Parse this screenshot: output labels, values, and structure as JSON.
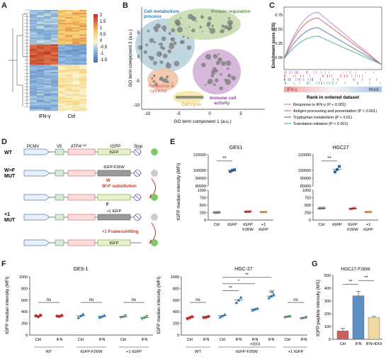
{
  "panels": {
    "A": {
      "label": "A",
      "xlabels": [
        "IFN-γ",
        "Ctrl"
      ],
      "colorbar_ticks": [
        "2",
        "1.5",
        "1",
        "0.5",
        "0",
        "-0.5",
        "-1",
        "-1.5"
      ]
    },
    "B": {
      "label": "B",
      "xlabel": "GO term component 1 (a.u.)",
      "ylabel": "GO term component 2 (a.u.)",
      "xticks": [
        "-10",
        "-5",
        "0",
        "5"
      ],
      "yticks": [
        "5",
        "0",
        "-5",
        "-10"
      ],
      "clusters": [
        {
          "name": "Cell metabolism process",
          "lines": [
            "Cell metabolism",
            "process"
          ],
          "color": "#2a7dbf"
        },
        {
          "name": "Protein regulation",
          "lines": [
            "Protein regulation"
          ],
          "color": "#5e9a3c"
        },
        {
          "name": "Response to cytokine",
          "lines": [
            "Response to",
            "cytokine"
          ],
          "color": "#d9534f"
        },
        {
          "name": "Cell cycle",
          "lines": [
            "Cell cycle"
          ],
          "color": "#e0a030"
        },
        {
          "name": "Immune cell activity",
          "lines": [
            "Immune cell",
            "activity"
          ],
          "color": "#8e4a9a"
        }
      ]
    },
    "C": {
      "label": "C",
      "ylabel": "Enrichment score (ES)",
      "yticks": [
        "0.75",
        "0.50",
        "0.25",
        "0.00"
      ],
      "left_tag": "IFN-γ",
      "right_tag": "Mock",
      "xlabel": "Rank in ordered dataset",
      "legend": [
        {
          "text": "Response to IFN-γ (P < 0.001)",
          "color": "#c08ad0"
        },
        {
          "text": "Antigen processing and presentation (P < 0.001)",
          "color": "#e06a6a"
        },
        {
          "text": "Tryptophan metabolism (P < 0.01)",
          "color": "#6a78c0"
        },
        {
          "text": "Translation initiation (P < 0.001)",
          "color": "#5ab89a"
        }
      ]
    },
    "D": {
      "label": "D",
      "rows": [
        {
          "name": "WT",
          "name_lines": [
            "WT"
          ],
          "tgfp": "tGFP"
        },
        {
          "name": "W>F MUT",
          "name_lines": [
            "W>F",
            "MUT"
          ],
          "tgfp": "tGFP-F26W",
          "site": "W",
          "arrow_label": "W>F substitution",
          "site2": "F"
        },
        {
          "name": "+1 MUT",
          "name_lines": [
            "+1",
            "MUT"
          ],
          "tgfp": "+1 tGFP",
          "arrow_label": "+1 Framesshifting",
          "tgfp2": "tGFP"
        }
      ],
      "header": {
        "promoter": "PCMV",
        "v5": "V5",
        "atf4": "ATF4",
        "atf4_sup": "1-63",
        "tgfp": "tGFP",
        "stop": "Stop"
      }
    },
    "E": {
      "label": "E",
      "ylabel": "tGFP median intensity (MFI)",
      "charts": [
        {
          "title": "GES1",
          "sig": "**"
        },
        {
          "title": "HGC27",
          "sig": "**"
        }
      ],
      "yticks_upper": [
        "120000",
        "100000",
        "90000",
        "80000"
      ],
      "yticks_lower": [
        "1000",
        "750",
        "500",
        "250",
        "0"
      ],
      "xticks": [
        [
          "Ctrl"
        ],
        [
          "tGFP"
        ],
        [
          "tGFP",
          "F26W"
        ],
        [
          "+1",
          "tGFP"
        ]
      ]
    },
    "F": {
      "label": "F",
      "ylabel": "tGFP median intensity (MFI)",
      "left_title": "GES-1",
      "right_title": "HGC-27",
      "yticks": [
        "1000",
        "800",
        "600",
        "400",
        "200",
        "0"
      ],
      "ns": "ns",
      "sig_labels": [
        "**",
        "*",
        "**"
      ],
      "extra_label": "-W",
      "left_xticks": [
        [
          "Ctrl"
        ],
        [
          "IFN"
        ],
        [
          "Ctrl"
        ],
        [
          "IFN"
        ],
        [
          "Ctrl"
        ],
        [
          "IFN"
        ]
      ],
      "left_groups": [
        "WT",
        "tGFP-F26W",
        "+1 tGFP"
      ],
      "right_xticks": [
        [
          "Ctrl"
        ],
        [
          "IFN"
        ],
        [
          "Ctrl"
        ],
        [
          "IFN"
        ],
        [
          "IFN",
          "+IDOi"
        ],
        [
          "IFN"
        ],
        [
          "Ctrl"
        ],
        [
          "IFN"
        ]
      ],
      "right_groups": [
        "WT",
        "tGFP-F26W",
        "+1 tGFP"
      ]
    },
    "G": {
      "label": "G",
      "title": "HGC27-F26W",
      "ylabel": "tGFP peptide intensity (MS)",
      "yticks": [
        "500",
        "400",
        "300",
        "200",
        "100",
        "0"
      ],
      "sig": [
        "**",
        "**"
      ],
      "xticks": [
        "Ctrl",
        "IFN",
        "IFN+IDOi"
      ]
    }
  },
  "chart_data": [
    {
      "type": "scatter",
      "title": "GES1",
      "categories": [
        "Ctrl",
        "tGFP",
        "tGFP F26W",
        "+1 tGFP"
      ],
      "series": [
        {
          "name": "Ctrl",
          "values": [
            252,
            255,
            258
          ]
        },
        {
          "name": "tGFP",
          "values": [
            98500,
            100000,
            100800
          ]
        },
        {
          "name": "tGFP F26W",
          "values": [
            285,
            290,
            295
          ]
        },
        {
          "name": "+1 tGFP",
          "values": [
            260,
            262,
            265
          ]
        }
      ],
      "colors": [
        "#999999",
        "#2b6cb0",
        "#c0392b",
        "#e8a53a"
      ]
    },
    {
      "type": "scatter",
      "title": "HGC27",
      "categories": [
        "Ctrl",
        "tGFP",
        "tGFP F26W",
        "+1 tGFP"
      ],
      "series": [
        {
          "name": "Ctrl",
          "values": [
            392,
            398,
            402
          ]
        },
        {
          "name": "tGFP",
          "values": [
            98000,
            101000,
            105000
          ]
        },
        {
          "name": "tGFP F26W",
          "values": [
            385,
            400,
            410
          ]
        },
        {
          "name": "+1 tGFP",
          "values": [
            255,
            262,
            268
          ]
        }
      ],
      "colors": [
        "#999999",
        "#2b6cb0",
        "#c0392b",
        "#e8a53a"
      ]
    },
    {
      "type": "scatter",
      "title": "GES-1",
      "ylim": [
        0,
        1000
      ],
      "categories": [
        "WT Ctrl",
        "WT IFN",
        "tGFP-F26W Ctrl",
        "tGFP-F26W IFN",
        "+1 tGFP Ctrl",
        "+1 tGFP IFN"
      ],
      "values": [
        [
          330,
          315,
          340
        ],
        [
          325,
          320,
          335
        ],
        [
          300,
          330,
          360
        ],
        [
          305,
          320,
          340
        ],
        [
          300,
          310,
          330
        ],
        [
          275,
          295,
          320
        ]
      ],
      "colors": [
        "#d63031",
        "#d63031",
        "#2b7bb9",
        "#2b7bb9",
        "#5aa469",
        "#5aa469"
      ]
    },
    {
      "type": "scatter",
      "title": "HGC-27",
      "ylim": [
        0,
        1000
      ],
      "categories": [
        "WT Ctrl",
        "WT IFN",
        "tGFP-F26W Ctrl",
        "tGFP-F26W IFN",
        "tGFP-F26W IFN+IDOi",
        "tGFP-F26W IFN -W",
        "+1 tGFP Ctrl",
        "+1 tGFP IFN"
      ],
      "values": [
        [
          280,
          300,
          315
        ],
        [
          300,
          305,
          320
        ],
        [
          310,
          330,
          355
        ],
        [
          560,
          600,
          650
        ],
        [
          430,
          445,
          460
        ],
        [
          640,
          670,
          700
        ],
        [
          300,
          310,
          320
        ],
        [
          280,
          290,
          305
        ]
      ],
      "colors": [
        "#d63031",
        "#d63031",
        "#2b7bb9",
        "#2b7bb9",
        "#2b7bb9",
        "#2b7bb9",
        "#5aa469",
        "#5aa469"
      ]
    },
    {
      "type": "bar",
      "title": "HGC27-F26W",
      "categories": [
        "Ctrl",
        "IFN",
        "IFN+IDOi"
      ],
      "values": [
        65,
        340,
        170
      ],
      "errors": [
        20,
        35,
        10
      ],
      "ylim": [
        0,
        500
      ],
      "colors": [
        "#c9605c",
        "#5b8fc4",
        "#f0d9a0"
      ]
    }
  ]
}
